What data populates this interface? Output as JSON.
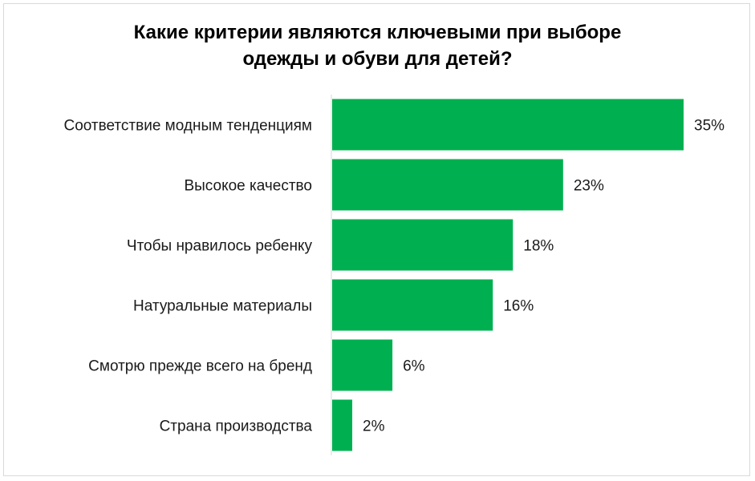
{
  "chart_data": {
    "type": "bar",
    "orientation": "horizontal",
    "title_lines": [
      "Какие критерии являются ключевыми при выборе",
      "одежды и обуви для детей?"
    ],
    "categories": [
      "Соответствие модным тенденциям",
      "Высокое качество",
      "Чтобы нравилось ребенку",
      "Натуральные материалы",
      "Смотрю прежде всего на бренд",
      "Страна производства"
    ],
    "values": [
      35,
      23,
      18,
      16,
      6,
      2
    ],
    "value_labels": [
      "35%",
      "23%",
      "18%",
      "16%",
      "6%",
      "2%"
    ],
    "unit": "%",
    "xlim": [
      0,
      35
    ],
    "grid": false,
    "legend": "none",
    "bar_color": "#00b050",
    "axis_color": "#d9d9d9"
  }
}
